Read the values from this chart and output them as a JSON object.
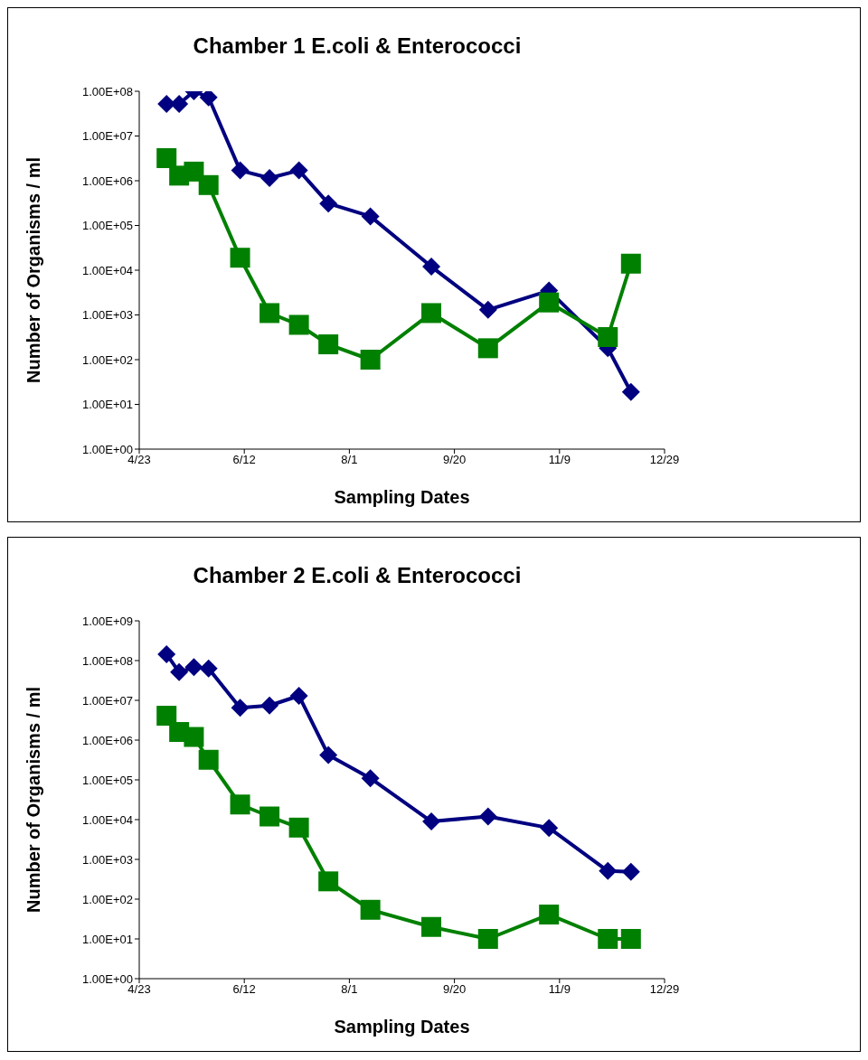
{
  "chart_data": [
    {
      "type": "line",
      "title": "Chamber 1 E.coli & Enterococci",
      "xlabel": "Sampling Dates",
      "ylabel": "Number of Organisms / ml",
      "log": "y",
      "legend": false,
      "line_style": "solid",
      "xlim": [
        "--04-23",
        "--12-29"
      ],
      "xticks": [
        {
          "value": "--04-23",
          "label": "4/23"
        },
        {
          "value": "--06-12",
          "label": "6/12"
        },
        {
          "value": "--08-01",
          "label": "8/1"
        },
        {
          "value": "--09-20",
          "label": "9/20"
        },
        {
          "value": "--11-09",
          "label": "11/9"
        },
        {
          "value": "--12-29",
          "label": "12/29"
        }
      ],
      "ylim": [
        1,
        100000000
      ],
      "yticks": [
        {
          "value": 1,
          "label": "1.00E+00"
        },
        {
          "value": 10,
          "label": "1.00E+01"
        },
        {
          "value": 100,
          "label": "1.00E+02"
        },
        {
          "value": 1000,
          "label": "1.00E+03"
        },
        {
          "value": 10000,
          "label": "1.00E+04"
        },
        {
          "value": 100000,
          "label": "1.00E+05"
        },
        {
          "value": 1000000,
          "label": "1.00E+06"
        },
        {
          "value": 10000000,
          "label": "1.00E+07"
        },
        {
          "value": 100000000,
          "label": "1.00E+08"
        }
      ],
      "x": [
        "--05-06",
        "--05-12",
        "--05-19",
        "--05-26",
        "--06-10",
        "--06-24",
        "--07-08",
        "--07-22",
        "--08-11",
        "--09-09",
        "--10-06",
        "--11-04",
        "--12-02",
        "--12-13"
      ],
      "series": [
        {
          "color": "#000080",
          "marker": "diamond",
          "values": [
            52000000,
            52000000,
            100000000,
            73000000,
            1700000,
            1150000,
            1700000,
            310000,
            160000,
            12000,
            1300,
            3500,
            180,
            19
          ]
        },
        {
          "color": "#008000",
          "marker": "square",
          "values": [
            3200000,
            1300000,
            1600000,
            800000,
            19000,
            1100,
            600,
            220,
            100,
            1100,
            180,
            1900,
            320,
            14000
          ]
        }
      ]
    },
    {
      "type": "line",
      "title": "Chamber 2 E.coli & Enterococci",
      "xlabel": "Sampling Dates",
      "ylabel": "Number of Organisms / ml",
      "log": "y",
      "legend": false,
      "line_style": "solid",
      "xlim": [
        "--04-23",
        "--12-29"
      ],
      "xticks": [
        {
          "value": "--04-23",
          "label": "4/23"
        },
        {
          "value": "--06-12",
          "label": "6/12"
        },
        {
          "value": "--08-01",
          "label": "8/1"
        },
        {
          "value": "--09-20",
          "label": "9/20"
        },
        {
          "value": "--11-09",
          "label": "11/9"
        },
        {
          "value": "--12-29",
          "label": "12/29"
        }
      ],
      "ylim": [
        1,
        1000000000
      ],
      "yticks": [
        {
          "value": 1,
          "label": "1.00E+00"
        },
        {
          "value": 10,
          "label": "1.00E+01"
        },
        {
          "value": 100,
          "label": "1.00E+02"
        },
        {
          "value": 1000,
          "label": "1.00E+03"
        },
        {
          "value": 10000,
          "label": "1.00E+04"
        },
        {
          "value": 100000,
          "label": "1.00E+05"
        },
        {
          "value": 1000000,
          "label": "1.00E+06"
        },
        {
          "value": 10000000,
          "label": "1.00E+07"
        },
        {
          "value": 100000000,
          "label": "1.00E+08"
        },
        {
          "value": 1000000000,
          "label": "1.00E+09"
        }
      ],
      "x": [
        "--05-06",
        "--05-12",
        "--05-19",
        "--05-26",
        "--06-10",
        "--06-24",
        "--07-08",
        "--07-22",
        "--08-11",
        "--09-09",
        "--10-06",
        "--11-04",
        "--12-02",
        "--12-13"
      ],
      "series": [
        {
          "color": "#000080",
          "marker": "diamond",
          "values": [
            145000000,
            51000000,
            68000000,
            63000000,
            6500000,
            7400000,
            13000000,
            420000,
            110000,
            9000,
            12000,
            6200,
            510,
            490
          ]
        },
        {
          "color": "#008000",
          "marker": "square",
          "values": [
            4100000,
            1600000,
            1200000,
            320000,
            24000,
            12000,
            6300,
            280,
            54,
            20,
            10,
            41,
            10,
            10
          ]
        }
      ]
    }
  ]
}
